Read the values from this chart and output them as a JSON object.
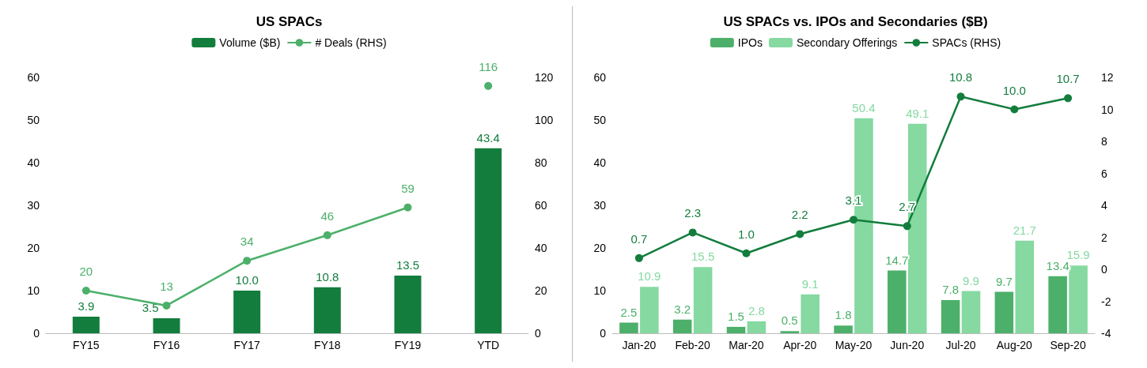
{
  "chart_data": [
    {
      "type": "bar",
      "title": "US SPACs",
      "categories": [
        "FY15",
        "FY16",
        "FY17",
        "FY18",
        "FY19",
        "YTD"
      ],
      "series": [
        {
          "name": "Volume ($B)",
          "color": "#137d3d",
          "values": [
            3.9,
            3.5,
            10.0,
            10.8,
            13.5,
            43.4
          ],
          "value_labels": [
            "3.9",
            "3.5",
            "10.0",
            "10.8",
            "13.5",
            "43.4"
          ]
        },
        {
          "name": "# Deals (RHS)",
          "type": "line",
          "axis": "y2",
          "color": "#4cb06a",
          "values": [
            20,
            13,
            34,
            46,
            59,
            null
          ]
        },
        {
          "type": "line",
          "axis": "y2",
          "color": "#4cb06a",
          "values": [
            null,
            null,
            null,
            null,
            null,
            116
          ]
        }
      ],
      "ylim": [
        0,
        60
      ],
      "yticks": [
        0,
        10,
        20,
        30,
        40,
        50,
        60
      ],
      "y2lim": [
        0,
        120
      ],
      "y2ticks": [
        0,
        20,
        40,
        60,
        80,
        100,
        120
      ],
      "data_labels": true,
      "legend": "top",
      "marker": "circle",
      "line_style": "solid"
    },
    {
      "type": "bar",
      "title": "US SPACs vs. IPOs and Secondaries ($B)",
      "categories": [
        "Jan-20",
        "Feb-20",
        "Mar-20",
        "Apr-20",
        "May-20",
        "Jun-20",
        "Jul-20",
        "Aug-20",
        "Sep-20"
      ],
      "series": [
        {
          "name": "IPOs",
          "color": "#4cb06a",
          "values": [
            2.5,
            3.2,
            1.5,
            0.5,
            1.8,
            14.7,
            7.8,
            9.7,
            13.4
          ]
        },
        {
          "name": "Secondary Offerings",
          "color": "#85d9a1",
          "values": [
            10.9,
            15.5,
            2.8,
            9.1,
            50.4,
            49.1,
            9.9,
            21.7,
            15.9
          ]
        },
        {
          "name": "SPACs (RHS)",
          "type": "line",
          "axis": "y2",
          "color": "#137d3d",
          "values": [
            0.7,
            2.3,
            1.0,
            2.2,
            3.1,
            2.7,
            10.8,
            10.0,
            10.7
          ],
          "value_labels": [
            "0.7",
            "2.3",
            "1.0",
            "2.2",
            "3.1",
            "2.7",
            "10.8",
            "10.0",
            "10.7"
          ]
        }
      ],
      "ylim": [
        0,
        60
      ],
      "yticks": [
        0,
        10,
        20,
        30,
        40,
        50,
        60
      ],
      "y2lim": [
        -4,
        12
      ],
      "y2ticks": [
        -4,
        -2,
        0,
        2,
        4,
        6,
        8,
        10,
        12
      ],
      "data_labels": true,
      "legend": "top",
      "marker": "circle",
      "line_style": "solid"
    }
  ]
}
